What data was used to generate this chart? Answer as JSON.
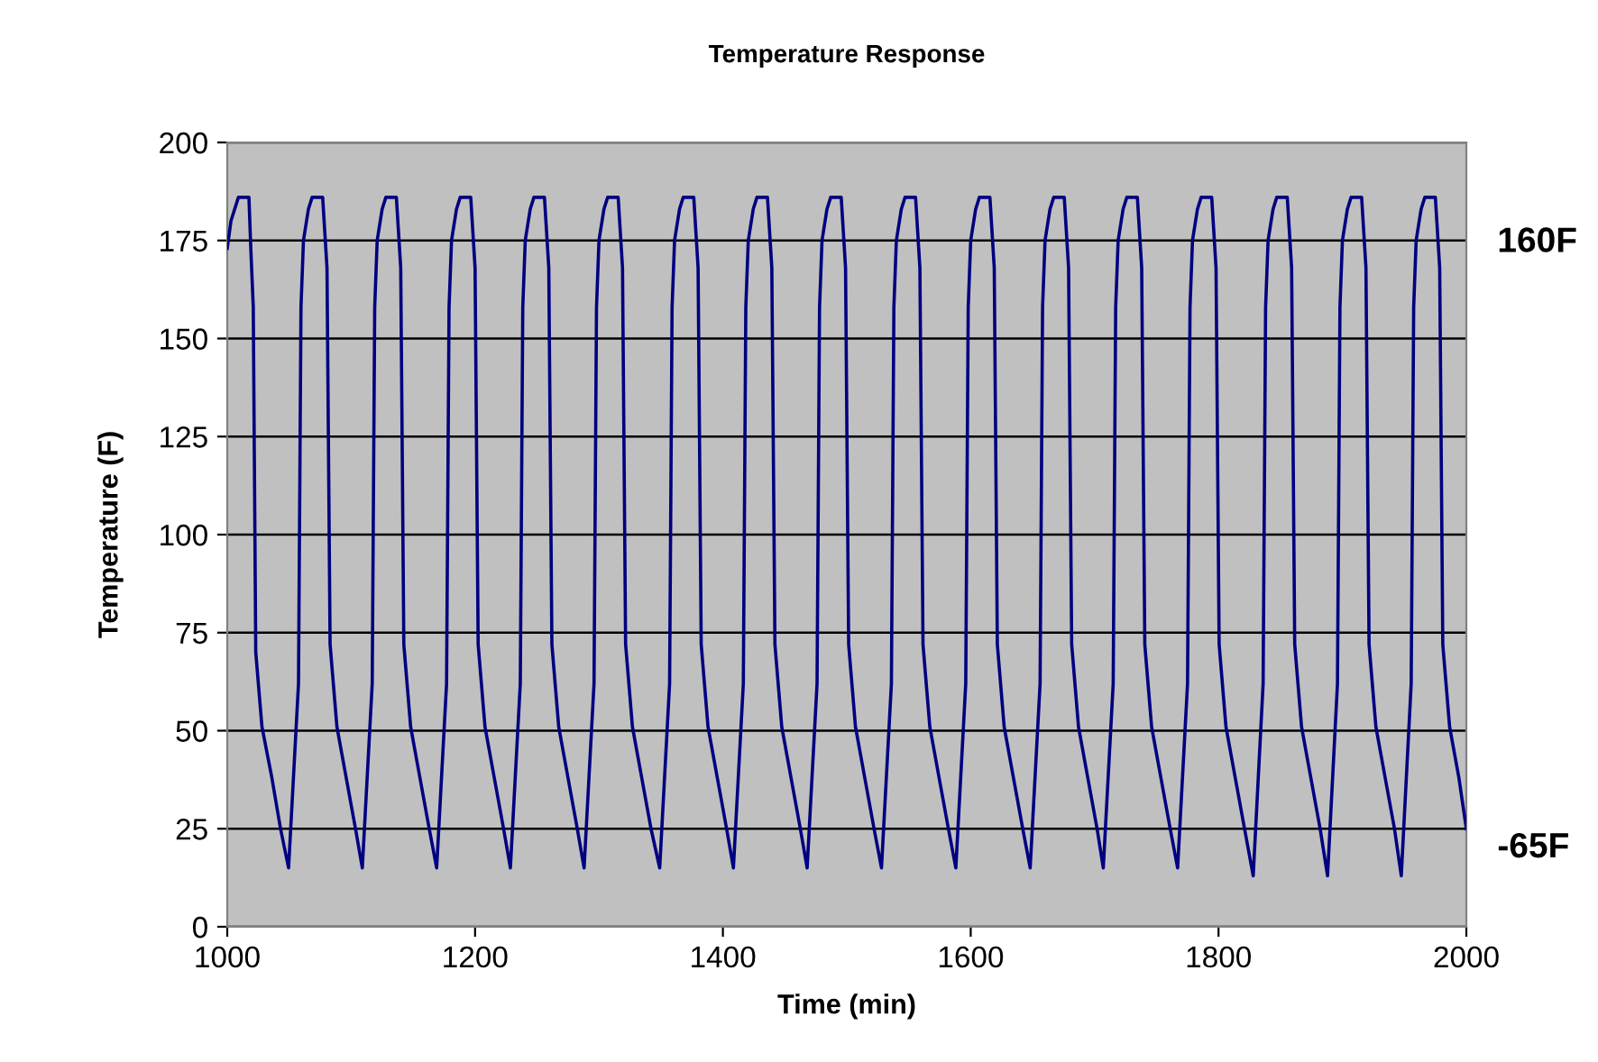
{
  "chart_data": {
    "type": "line",
    "title": "Temperature Response",
    "xlabel": "Time (min)",
    "ylabel": "Temperature (F)",
    "annotations": [
      "160F",
      "-65F"
    ],
    "xlim": [
      1000,
      2000
    ],
    "xticks": [
      1000,
      1200,
      1400,
      1600,
      1800,
      2000
    ],
    "ylim": [
      0,
      200
    ],
    "yticks": [
      0,
      25,
      50,
      75,
      100,
      125,
      150,
      175,
      200
    ],
    "grid": "y",
    "marker": "none",
    "line_style": "solid",
    "series": [
      {
        "color": "#000080",
        "x": [
          1000,
          1003,
          1009,
          1017.5,
          1019,
          1021,
          1023,
          1028,
          1036,
          1043,
          1049.5,
          1057.5,
          1059.5,
          1061.5,
          1065.5,
          1068.5,
          1077,
          1080.5,
          1083,
          1088.5,
          1096,
          1103.5,
          1109,
          1117,
          1119,
          1121,
          1125,
          1128,
          1136.5,
          1140,
          1142.5,
          1148,
          1155.5,
          1163,
          1169,
          1177,
          1179,
          1181,
          1185,
          1188,
          1196.5,
          1200,
          1202.5,
          1208,
          1215.5,
          1223,
          1228.5,
          1236.5,
          1238.5,
          1240.5,
          1244.5,
          1247.5,
          1256,
          1259.5,
          1262,
          1267.5,
          1275,
          1282.5,
          1288,
          1296,
          1298,
          1300,
          1304,
          1307,
          1315.5,
          1319,
          1321.5,
          1327,
          1334.5,
          1342,
          1349,
          1357,
          1359,
          1361,
          1365,
          1368,
          1376.5,
          1380,
          1382.5,
          1388,
          1395.5,
          1403,
          1408.5,
          1416.5,
          1418.5,
          1420.5,
          1424.5,
          1427.5,
          1436,
          1439.5,
          1442,
          1447.5,
          1455,
          1462.5,
          1468,
          1476,
          1478,
          1480,
          1484,
          1487,
          1495.5,
          1499,
          1501.5,
          1507,
          1514.5,
          1522,
          1528,
          1536,
          1538,
          1540,
          1544,
          1547,
          1555.5,
          1559,
          1561.5,
          1567,
          1574.5,
          1582,
          1588,
          1596,
          1598,
          1600,
          1604,
          1607,
          1615.5,
          1619,
          1621.5,
          1627,
          1634.5,
          1642,
          1648,
          1656,
          1658,
          1660,
          1664,
          1667,
          1675.5,
          1679,
          1681.5,
          1687,
          1694.5,
          1702,
          1707,
          1715,
          1717,
          1719,
          1723,
          1726,
          1734.5,
          1738,
          1740.5,
          1746,
          1753.5,
          1761,
          1767,
          1775,
          1777,
          1779,
          1783,
          1786,
          1794.5,
          1798,
          1800.5,
          1806,
          1813.5,
          1821,
          1828,
          1836,
          1838,
          1840,
          1844,
          1847,
          1855.5,
          1859,
          1861.5,
          1867,
          1874.5,
          1882,
          1888,
          1896,
          1898,
          1900,
          1904,
          1907,
          1915.5,
          1919,
          1921.5,
          1927,
          1934.5,
          1942,
          1947.5,
          1955.5,
          1957.5,
          1959.5,
          1963.5,
          1966.5,
          1975,
          1978.5,
          1981,
          1986.5,
          1994,
          2000
        ],
        "values": [
          173,
          180,
          186,
          186,
          173,
          158,
          70,
          51,
          38,
          25,
          15,
          62,
          158,
          175,
          183,
          186,
          186,
          168,
          72,
          51,
          38,
          25,
          15,
          62,
          158,
          175,
          183,
          186,
          186,
          168,
          72,
          51,
          38,
          25,
          15,
          62,
          158,
          175,
          183,
          186,
          186,
          168,
          72,
          51,
          38,
          25,
          15,
          62,
          158,
          175,
          183,
          186,
          186,
          168,
          72,
          51,
          38,
          25,
          15,
          62,
          158,
          175,
          183,
          186,
          186,
          168,
          72,
          51,
          38,
          25,
          15,
          62,
          158,
          175,
          183,
          186,
          186,
          168,
          72,
          51,
          38,
          25,
          15,
          62,
          158,
          175,
          183,
          186,
          186,
          168,
          72,
          51,
          38,
          25,
          15,
          62,
          158,
          175,
          183,
          186,
          186,
          168,
          72,
          51,
          38,
          25,
          15,
          62,
          158,
          175,
          183,
          186,
          186,
          168,
          72,
          51,
          38,
          25,
          15,
          62,
          158,
          175,
          183,
          186,
          186,
          168,
          72,
          51,
          38,
          25,
          15,
          62,
          158,
          175,
          183,
          186,
          186,
          168,
          72,
          51,
          38,
          25,
          15,
          62,
          158,
          175,
          183,
          186,
          186,
          168,
          72,
          51,
          38,
          25,
          15,
          62,
          158,
          175,
          183,
          186,
          186,
          168,
          72,
          51,
          38,
          25,
          13,
          62,
          158,
          175,
          183,
          186,
          186,
          168,
          72,
          51,
          38,
          25,
          13,
          62,
          158,
          175,
          183,
          186,
          186,
          168,
          72,
          51,
          38,
          25,
          13,
          62,
          158,
          175,
          183,
          186,
          186,
          168,
          72,
          51,
          38,
          25
        ]
      }
    ]
  }
}
